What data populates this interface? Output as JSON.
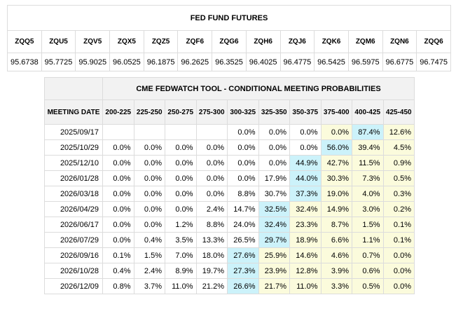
{
  "futures": {
    "title": "FED FUND FUTURES",
    "columns": [
      {
        "code": "ZQQ5",
        "price": "95.6738"
      },
      {
        "code": "ZQU5",
        "price": "95.7725"
      },
      {
        "code": "ZQV5",
        "price": "95.9025"
      },
      {
        "code": "ZQX5",
        "price": "96.0525"
      },
      {
        "code": "ZQZ5",
        "price": "96.1875"
      },
      {
        "code": "ZQF6",
        "price": "96.2625"
      },
      {
        "code": "ZQG6",
        "price": "96.3525"
      },
      {
        "code": "ZQH6",
        "price": "96.4025"
      },
      {
        "code": "ZQJ6",
        "price": "96.4775"
      },
      {
        "code": "ZQK6",
        "price": "96.5425"
      },
      {
        "code": "ZQM6",
        "price": "96.5975"
      },
      {
        "code": "ZQN6",
        "price": "96.6775"
      },
      {
        "code": "ZQQ6",
        "price": "96.7475"
      }
    ]
  },
  "fedwatch": {
    "title": "CME FEDWATCH TOOL - CONDITIONAL MEETING PROBABILITIES",
    "date_header": "MEETING DATE",
    "ranges": [
      "200-225",
      "225-250",
      "250-275",
      "275-300",
      "300-325",
      "325-350",
      "350-375",
      "375-400",
      "400-425",
      "425-450"
    ],
    "colors": {
      "highlight": "#ccf2fa",
      "shade": "#fbfbdc"
    },
    "rows": [
      {
        "date": "2025/09/17",
        "cells": [
          "",
          "",
          "",
          "",
          "0.0%",
          "0.0%",
          "0.0%",
          "0.0%",
          "87.4%",
          "12.6%"
        ],
        "max": 8,
        "shade_from": 7
      },
      {
        "date": "2025/10/29",
        "cells": [
          "0.0%",
          "0.0%",
          "0.0%",
          "0.0%",
          "0.0%",
          "0.0%",
          "0.0%",
          "56.0%",
          "39.4%",
          "4.5%"
        ],
        "max": 7,
        "shade_from": 7
      },
      {
        "date": "2025/12/10",
        "cells": [
          "0.0%",
          "0.0%",
          "0.0%",
          "0.0%",
          "0.0%",
          "0.0%",
          "44.9%",
          "42.7%",
          "11.5%",
          "0.9%"
        ],
        "max": 6,
        "shade_from": 7
      },
      {
        "date": "2026/01/28",
        "cells": [
          "0.0%",
          "0.0%",
          "0.0%",
          "0.0%",
          "0.0%",
          "17.9%",
          "44.0%",
          "30.3%",
          "7.3%",
          "0.5%"
        ],
        "max": 6,
        "shade_from": 7
      },
      {
        "date": "2026/03/18",
        "cells": [
          "0.0%",
          "0.0%",
          "0.0%",
          "0.0%",
          "8.8%",
          "30.7%",
          "37.3%",
          "19.0%",
          "4.0%",
          "0.3%"
        ],
        "max": 6,
        "shade_from": 7
      },
      {
        "date": "2026/04/29",
        "cells": [
          "0.0%",
          "0.0%",
          "0.0%",
          "2.4%",
          "14.7%",
          "32.5%",
          "32.4%",
          "14.9%",
          "3.0%",
          "0.2%"
        ],
        "max": 5,
        "shade_from": 6
      },
      {
        "date": "2026/06/17",
        "cells": [
          "0.0%",
          "0.0%",
          "1.2%",
          "8.8%",
          "24.0%",
          "32.4%",
          "23.3%",
          "8.7%",
          "1.5%",
          "0.1%"
        ],
        "max": 5,
        "shade_from": 6
      },
      {
        "date": "2026/07/29",
        "cells": [
          "0.0%",
          "0.4%",
          "3.5%",
          "13.3%",
          "26.5%",
          "29.7%",
          "18.9%",
          "6.6%",
          "1.1%",
          "0.1%"
        ],
        "max": 5,
        "shade_from": 6
      },
      {
        "date": "2026/09/16",
        "cells": [
          "0.1%",
          "1.5%",
          "7.0%",
          "18.0%",
          "27.6%",
          "25.9%",
          "14.6%",
          "4.6%",
          "0.7%",
          "0.0%"
        ],
        "max": 4,
        "shade_from": 5
      },
      {
        "date": "2026/10/28",
        "cells": [
          "0.4%",
          "2.4%",
          "8.9%",
          "19.7%",
          "27.3%",
          "23.9%",
          "12.8%",
          "3.9%",
          "0.6%",
          "0.0%"
        ],
        "max": 4,
        "shade_from": 5
      },
      {
        "date": "2026/12/09",
        "cells": [
          "0.8%",
          "3.7%",
          "11.0%",
          "21.2%",
          "26.6%",
          "21.7%",
          "11.0%",
          "3.3%",
          "0.5%",
          "0.0%"
        ],
        "max": 4,
        "shade_from": 5
      }
    ]
  }
}
